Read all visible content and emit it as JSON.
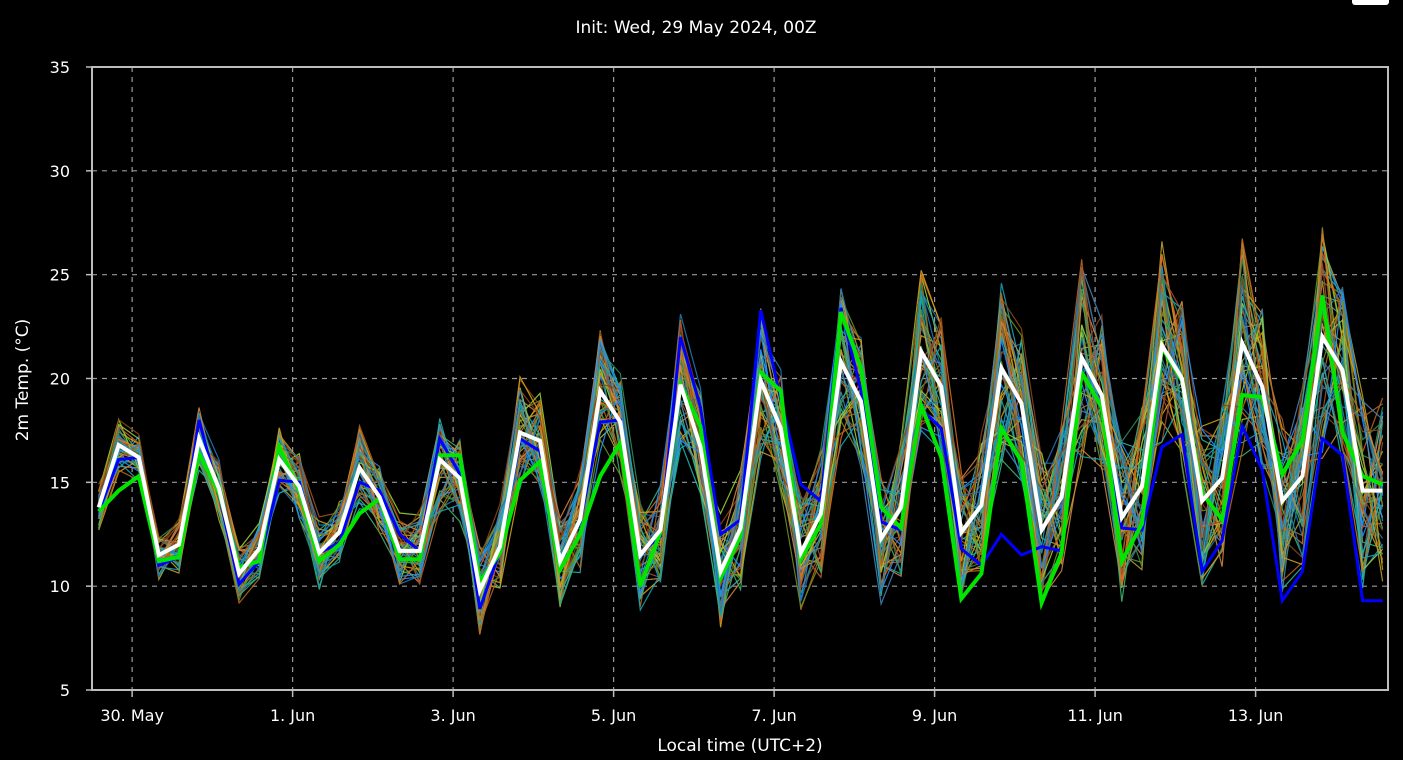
{
  "chart_data": {
    "type": "line",
    "title": "Init: Wed, 29 May 2024, 00Z",
    "xlabel": "Local time (UTC+2)",
    "ylabel": "2m Temp. (°C)",
    "ylim": [
      5,
      35
    ],
    "yticks": [
      "35",
      "30",
      "25",
      "20",
      "15",
      "10",
      "5"
    ],
    "x_range_days": [
      29.5,
      45.65
    ],
    "xtick_labels": [
      "30. May",
      "1. Jun",
      "3. Jun",
      "5. Jun",
      "7. Jun",
      "9. Jun",
      "11. Jun",
      "13. Jun"
    ],
    "xtick_days": [
      30,
      32,
      34,
      36,
      38,
      40,
      42,
      44
    ],
    "grid": true,
    "grid_color": "#9a9a9a",
    "frame_color": "#bdbdbd",
    "ensemble_palette": [
      "#1f77b4",
      "#17a2b8",
      "#20b2aa",
      "#2e8b57",
      "#3cb371",
      "#6b8e23",
      "#9acd32",
      "#b8a02a",
      "#d4a017",
      "#cd853f",
      "#d2691e",
      "#b5651d",
      "#a0522d",
      "#8b4513",
      "#4682b4",
      "#1e90ff"
    ],
    "x_days": [
      29.583,
      29.833,
      30.083,
      30.333,
      30.583,
      30.833,
      31.083,
      31.333,
      31.583,
      31.833,
      32.083,
      32.333,
      32.583,
      32.833,
      33.083,
      33.333,
      33.583,
      33.833,
      34.083,
      34.333,
      34.583,
      34.833,
      35.083,
      35.333,
      35.583,
      35.833,
      36.083,
      36.333,
      36.583,
      36.833,
      37.083,
      37.333,
      37.583,
      37.833,
      38.083,
      38.333,
      38.583,
      38.833,
      39.083,
      39.333,
      39.583,
      39.833,
      40.083,
      40.333,
      40.583,
      40.833,
      41.083,
      41.333,
      41.583,
      41.833,
      42.083,
      42.333,
      42.583,
      42.833,
      43.083,
      43.333,
      43.583,
      43.833,
      44.083,
      44.333,
      44.583,
      44.833,
      45.083,
      45.333,
      45.583
    ],
    "series": [
      {
        "role": "mean",
        "color": "#ffffff",
        "values": [
          13.8,
          16.8,
          16.2,
          11.5,
          12.0,
          17.1,
          14.7,
          10.6,
          11.8,
          16.1,
          14.8,
          11.6,
          12.6,
          15.7,
          14.3,
          11.7,
          11.7,
          16.1,
          15.2,
          9.8,
          11.9,
          17.4,
          17.0,
          11.2,
          13.2,
          19.4,
          17.9,
          11.5,
          12.7,
          19.7,
          16.7,
          10.7,
          12.8,
          19.9,
          17.6,
          11.6,
          13.5,
          20.8,
          18.9,
          12.3,
          13.8,
          21.3,
          19.6,
          12.6,
          13.9,
          20.5,
          18.8,
          12.7,
          14.3,
          21.0,
          19.2,
          13.3,
          14.8,
          21.6,
          20.0,
          14.1,
          15.2,
          21.7,
          19.6,
          14.1,
          15.3,
          22.0,
          20.4,
          14.6,
          14.6
        ]
      },
      {
        "role": "deterministic",
        "color": "#00e600",
        "values": [
          13.6,
          14.6,
          15.3,
          11.2,
          11.4,
          16.4,
          14.5,
          10.9,
          11.2,
          16.7,
          14.6,
          11.2,
          12.0,
          13.5,
          14.2,
          11.3,
          11.3,
          16.3,
          16.3,
          10.2,
          11.6,
          15.1,
          16.0,
          10.8,
          12.5,
          15.3,
          16.9,
          10.0,
          12.6,
          19.7,
          17.7,
          10.4,
          12.4,
          20.3,
          19.4,
          11.3,
          13.0,
          23.2,
          20.5,
          13.8,
          12.8,
          18.7,
          16.2,
          9.4,
          10.6,
          17.6,
          16.0,
          9.2,
          11.6,
          20.3,
          18.6,
          11.2,
          13.0,
          21.5,
          19.9,
          14.5,
          13.2,
          19.2,
          19.1,
          15.4,
          17.0,
          24.0,
          17.4,
          15.3,
          14.9
        ]
      },
      {
        "role": "control",
        "color": "#0000ff",
        "values": [
          13.6,
          16.1,
          16.2,
          11.0,
          11.4,
          18.0,
          14.4,
          10.1,
          11.2,
          15.1,
          15.0,
          11.6,
          12.1,
          15.0,
          14.6,
          12.5,
          11.7,
          17.1,
          15.4,
          8.9,
          11.7,
          17.1,
          16.5,
          11.2,
          13.1,
          17.9,
          18.0,
          11.6,
          12.4,
          22.0,
          18.6,
          12.5,
          13.2,
          23.3,
          19.0,
          14.9,
          14.1,
          23.4,
          19.4,
          13.1,
          12.7,
          18.5,
          17.6,
          11.8,
          11.0,
          12.5,
          11.5,
          11.9,
          11.7,
          20.4,
          18.5,
          12.8,
          12.7,
          16.7,
          17.3,
          10.7,
          12.2,
          17.7,
          15.6,
          9.3,
          10.7,
          17.1,
          16.3,
          9.3,
          9.3
        ]
      }
    ]
  }
}
